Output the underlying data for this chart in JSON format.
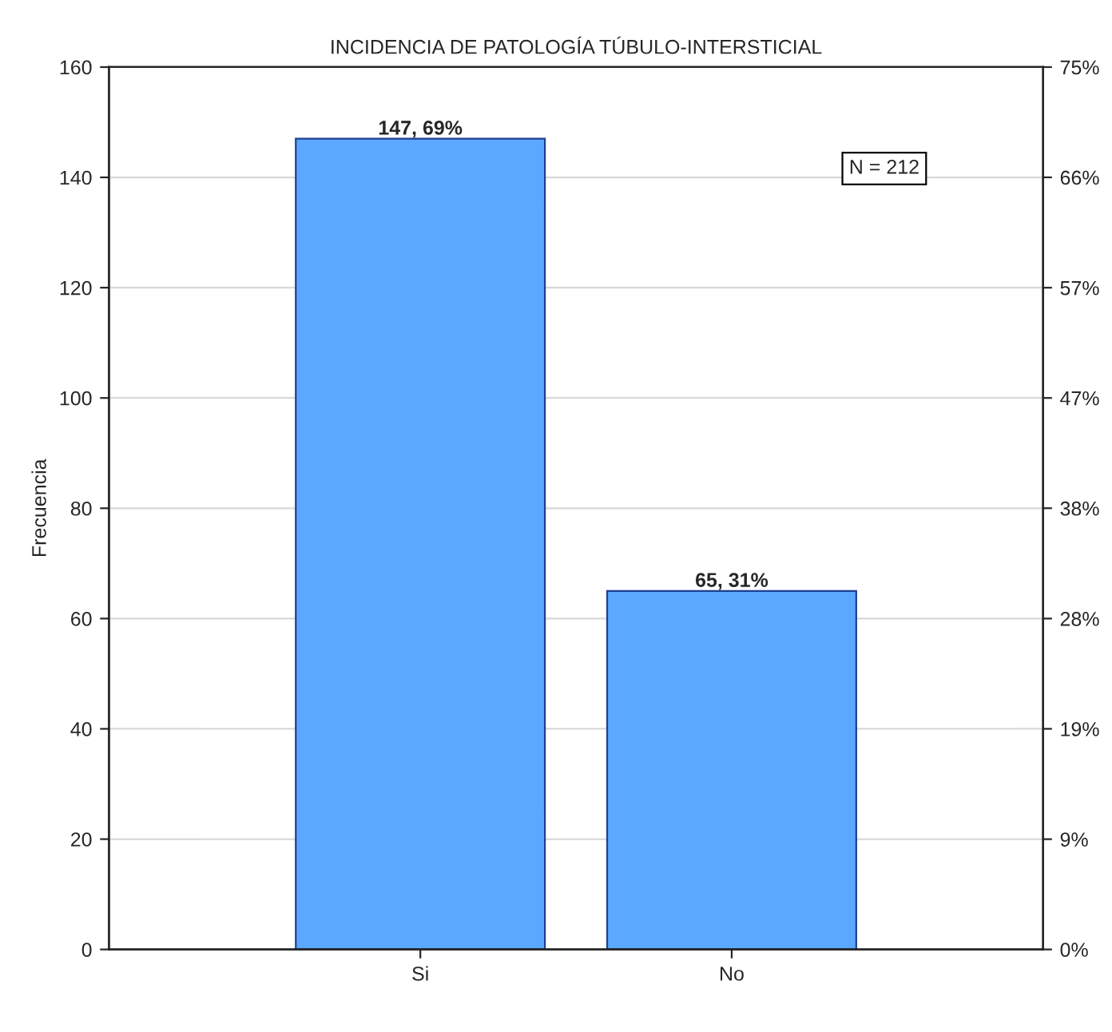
{
  "chart_data": {
    "type": "bar",
    "title": "INCIDENCIA DE PATOLOGÍA TÚBULO-INTERSTICIAL",
    "ylabel": "Frecuencia",
    "categories": [
      "Si",
      "No"
    ],
    "values": [
      147,
      65
    ],
    "value_labels": [
      "147, 69%",
      "65, 31%"
    ],
    "color": "#5aa8ff",
    "ylim": [
      0,
      160
    ],
    "yticks": [
      0,
      20,
      40,
      60,
      80,
      100,
      120,
      140,
      160
    ],
    "y2lim": [
      0,
      75.47
    ],
    "y2ticks": [
      {
        "value": 0,
        "label": "0%"
      },
      {
        "value": 9.43,
        "label": "9%"
      },
      {
        "value": 18.87,
        "label": "19%"
      },
      {
        "value": 28.3,
        "label": "28%"
      },
      {
        "value": 37.74,
        "label": "38%"
      },
      {
        "value": 47.17,
        "label": "47%"
      },
      {
        "value": 56.6,
        "label": "57%"
      },
      {
        "value": 66.04,
        "label": "66%"
      },
      {
        "value": 75.47,
        "label": "75%"
      }
    ],
    "annotations": [
      "N = 212"
    ],
    "grid": "y"
  }
}
